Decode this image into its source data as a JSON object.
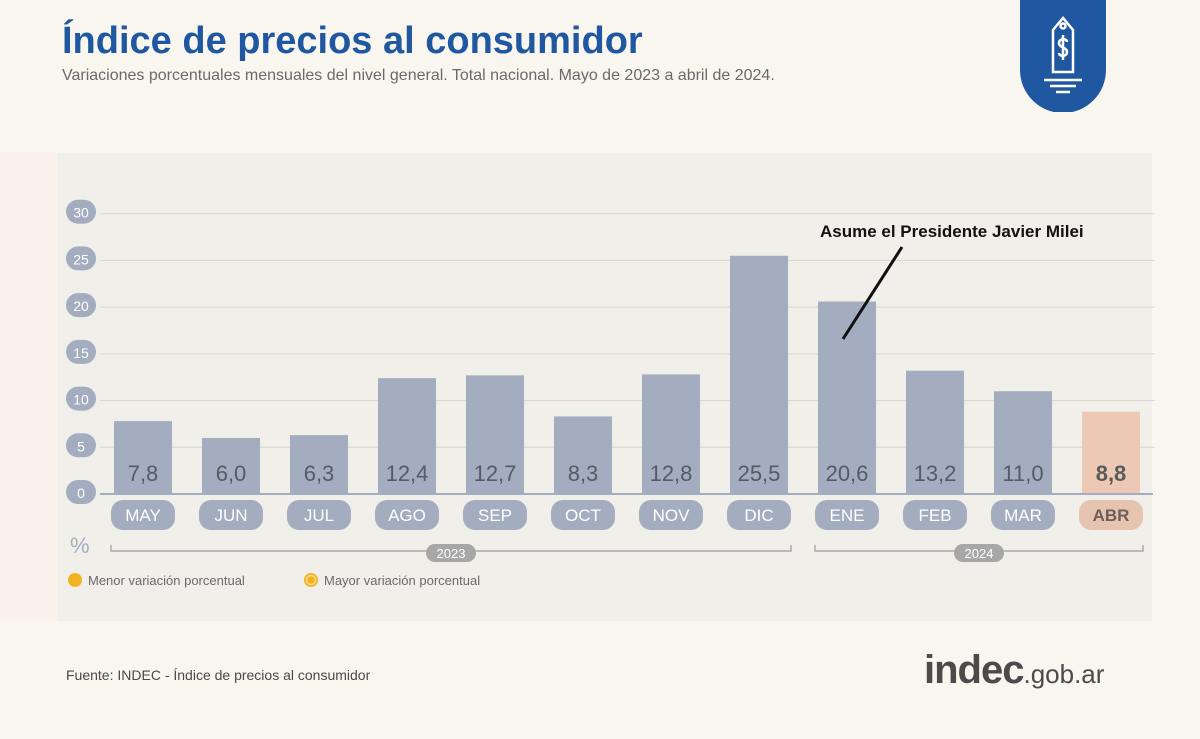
{
  "header": {
    "title": "Índice de precios al consumidor",
    "subtitle": "Variaciones porcentuales mensuales del nivel general. Total nacional. Mayo de 2023 a abril de 2024."
  },
  "badge": {
    "icon": "price-tag-dollar-icon",
    "color": "#1f57a0"
  },
  "chart_data": {
    "type": "bar",
    "categories": [
      "MAY",
      "JUN",
      "JUL",
      "AGO",
      "SEP",
      "OCT",
      "NOV",
      "DIC",
      "ENE",
      "FEB",
      "MAR",
      "ABR"
    ],
    "values": [
      7.8,
      6.0,
      6.3,
      12.4,
      12.7,
      8.3,
      12.8,
      25.5,
      20.6,
      13.2,
      11.0,
      8.8
    ],
    "value_labels": [
      "7,8",
      "6,0",
      "6,3",
      "12,4",
      "12,7",
      "8,3",
      "12,8",
      "25,5",
      "20,6",
      "13,2",
      "11,0",
      "8,8"
    ],
    "ylabel": "%",
    "yticks": [
      0,
      5,
      10,
      15,
      20,
      25,
      30
    ],
    "ylim": [
      0,
      35
    ],
    "grid": true,
    "highlight_category": "ABR",
    "year_groups": [
      {
        "label": "2023",
        "categories": [
          "MAY",
          "JUN",
          "JUL",
          "AGO",
          "SEP",
          "OCT",
          "NOV",
          "DIC"
        ]
      },
      {
        "label": "2024",
        "categories": [
          "ENE",
          "FEB",
          "MAR",
          "ABR"
        ]
      }
    ],
    "annotation": {
      "text": "Asume el Presidente Javier Milei",
      "category": "ENE"
    },
    "legend": [
      {
        "label": "Menor variación porcentual",
        "color": "#f0b323"
      },
      {
        "label": "Mayor variación porcentual",
        "color": "#f0b323"
      }
    ],
    "colors": {
      "bar": "#a3adbf",
      "bar_highlight": "#edc9b5",
      "label_pill": "#a3adbf",
      "highlight_pill": "#e6c4b0",
      "grid": "#d8d5d0",
      "axis": "#a3adbf"
    }
  },
  "footer": {
    "source": "Fuente: INDEC - Índice de precios al consumidor",
    "logo_main": "indec",
    "logo_domain": ".gob.ar"
  }
}
